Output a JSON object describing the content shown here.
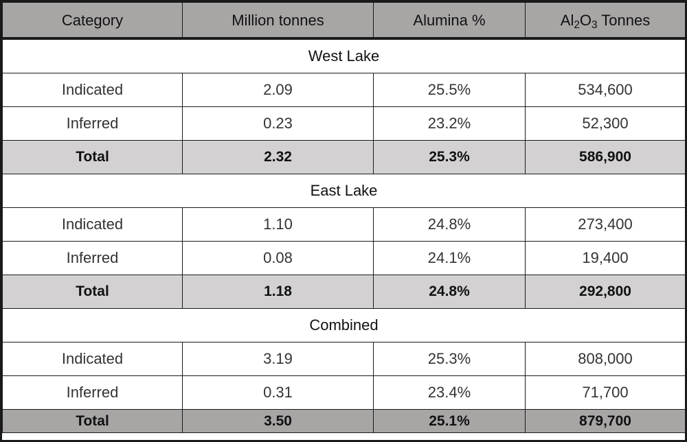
{
  "header": {
    "category": "Category",
    "million_tonnes": "Million tonnes",
    "alumina_pct": "Alumina %",
    "al2o3_prefix": "Al",
    "al2o3_sub1": "2",
    "al2o3_mid": "O",
    "al2o3_sub2": "3",
    "al2o3_suffix": " Tonnes"
  },
  "sections": [
    {
      "name": "West Lake",
      "rows": [
        {
          "category": "Indicated",
          "mt": "2.09",
          "pct": "25.5%",
          "tonnes": "534,600"
        },
        {
          "category": "Inferred",
          "mt": "0.23",
          "pct": "23.2%",
          "tonnes": "52,300"
        }
      ],
      "total": {
        "category": "Total",
        "mt": "2.32",
        "pct": "25.3%",
        "tonnes": "586,900"
      }
    },
    {
      "name": "East Lake",
      "rows": [
        {
          "category": "Indicated",
          "mt": "1.10",
          "pct": "24.8%",
          "tonnes": "273,400"
        },
        {
          "category": "Inferred",
          "mt": "0.08",
          "pct": "24.1%",
          "tonnes": "19,400"
        }
      ],
      "total": {
        "category": "Total",
        "mt": "1.18",
        "pct": "24.8%",
        "tonnes": "292,800"
      }
    },
    {
      "name": "Combined",
      "rows": [
        {
          "category": "Indicated",
          "mt": "3.19",
          "pct": "25.3%",
          "tonnes": "808,000"
        },
        {
          "category": "Inferred",
          "mt": "0.31",
          "pct": "23.4%",
          "tonnes": "71,700"
        }
      ],
      "total": {
        "category": "Total",
        "mt": "3.50",
        "pct": "25.1%",
        "tonnes": "879,700"
      }
    }
  ],
  "colors": {
    "header_bg": "#a8a5a5",
    "total_bg": "#d3d1d1",
    "border": "#1a1a1a"
  }
}
